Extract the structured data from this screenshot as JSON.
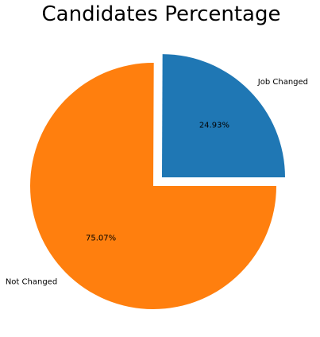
{
  "chart_data": {
    "type": "pie",
    "title": "Candidates Percentage",
    "slices": [
      {
        "label": "Job Changed",
        "value": 24.93,
        "display": "24.93%",
        "color": "#1f77b4",
        "explode": 0.1
      },
      {
        "label": "Not Changed",
        "value": 75.07,
        "display": "75.07%",
        "color": "#ff7f0e",
        "explode": 0
      }
    ],
    "start_angle_deg": 0,
    "direction": "counterclockwise"
  }
}
